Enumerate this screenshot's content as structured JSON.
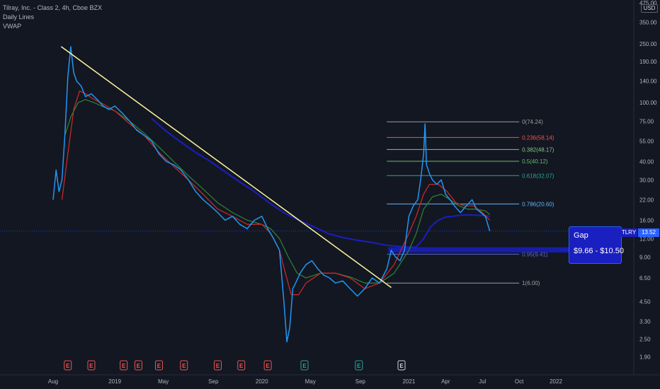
{
  "legend": {
    "title": "Tilray, Inc. - Class 2, 4h, Cboe BZX",
    "line1": "Daily Lines",
    "line2": "VWAP"
  },
  "currency": "USD",
  "colors": {
    "background": "#131722",
    "price": "#2196f3",
    "ma_red": "#c62828",
    "ma_green": "#2e7d32",
    "vwap": "#1a1fc0",
    "trendline": "#fff59d",
    "axis_text": "#b2b5be"
  },
  "gap": {
    "title": "Gap",
    "range": "$9.66 - $10.50"
  },
  "symbol_tag": "TLRY",
  "last_price": "13.52",
  "chart_data": {
    "type": "line",
    "title": "Tilray, Inc. - Class 2, 4h, Cboe BZX",
    "y_scale": "log",
    "ylim": [
      1.6,
      475
    ],
    "xlim": [
      2018.58,
      2022.42
    ],
    "y_ticks": [
      1.9,
      2.5,
      3.3,
      4.5,
      6.5,
      9.0,
      12.0,
      16.0,
      22.0,
      30.0,
      40.0,
      55.0,
      75.0,
      100.0,
      140.0,
      190.0,
      250.0,
      350.0,
      475.0
    ],
    "y_tick_labels": [
      "1.90",
      "2.50",
      "3.30",
      "4.50",
      "6.50",
      "9.00",
      "12.00",
      "16.00",
      "22.00",
      "30.00",
      "40.00",
      "55.00",
      "75.00",
      "100.00",
      "140.00",
      "190.00",
      "250.00",
      "350.00",
      "475.00"
    ],
    "x_ticks": [
      {
        "t": 2018.58,
        "label": "Aug"
      },
      {
        "t": 2019.0,
        "label": "2019"
      },
      {
        "t": 2019.33,
        "label": "May"
      },
      {
        "t": 2019.67,
        "label": "Sep"
      },
      {
        "t": 2020.0,
        "label": "2020"
      },
      {
        "t": 2020.33,
        "label": "May"
      },
      {
        "t": 2020.67,
        "label": "Sep"
      },
      {
        "t": 2021.0,
        "label": "2021"
      },
      {
        "t": 2021.25,
        "label": "Apr"
      },
      {
        "t": 2021.5,
        "label": "Jul"
      },
      {
        "t": 2021.75,
        "label": "Oct"
      },
      {
        "t": 2022.0,
        "label": "2022"
      }
    ],
    "series": [
      {
        "name": "TLRY",
        "x": [
          2018.58,
          2018.6,
          2018.62,
          2018.64,
          2018.66,
          2018.68,
          2018.7,
          2018.72,
          2018.74,
          2018.77,
          2018.8,
          2018.84,
          2018.88,
          2018.92,
          2018.96,
          2019.0,
          2019.05,
          2019.1,
          2019.15,
          2019.2,
          2019.25,
          2019.3,
          2019.35,
          2019.4,
          2019.45,
          2019.5,
          2019.55,
          2019.6,
          2019.65,
          2019.7,
          2019.75,
          2019.8,
          2019.85,
          2019.9,
          2019.95,
          2020.0,
          2020.04,
          2020.08,
          2020.12,
          2020.15,
          2020.17,
          2020.19,
          2020.21,
          2020.23,
          2020.26,
          2020.3,
          2020.34,
          2020.38,
          2020.42,
          2020.46,
          2020.5,
          2020.55,
          2020.6,
          2020.65,
          2020.7,
          2020.75,
          2020.8,
          2020.85,
          2020.88,
          2020.91,
          2020.94,
          2020.97,
          2021.0,
          2021.03,
          2021.06,
          2021.08,
          2021.1,
          2021.11,
          2021.12,
          2021.14,
          2021.16,
          2021.19,
          2021.22,
          2021.25,
          2021.28,
          2021.31,
          2021.35,
          2021.39,
          2021.43,
          2021.46,
          2021.49,
          2021.52,
          2021.55
        ],
        "y": [
          22,
          35,
          25,
          30,
          60,
          150,
          240,
          160,
          140,
          130,
          110,
          115,
          105,
          95,
          90,
          95,
          85,
          75,
          65,
          60,
          55,
          45,
          40,
          38,
          35,
          30,
          25,
          22,
          20,
          18,
          16,
          17,
          15,
          14,
          16,
          17,
          14,
          12,
          10,
          4.5,
          2.4,
          3.0,
          5.5,
          6.0,
          7.0,
          8.0,
          8.5,
          7.5,
          6.8,
          6.5,
          6.0,
          6.2,
          5.5,
          4.9,
          5.5,
          6.5,
          6.0,
          7.5,
          10,
          9,
          8.5,
          10,
          17,
          20,
          22,
          30,
          45,
          72,
          38,
          33,
          30,
          28,
          30,
          24,
          22,
          20,
          18,
          20,
          22,
          19,
          18,
          17,
          13.52
        ]
      },
      {
        "name": "MA red",
        "x": [
          2018.64,
          2018.68,
          2018.72,
          2018.76,
          2018.8,
          2018.86,
          2018.92,
          2019.0,
          2019.1,
          2019.2,
          2019.3,
          2019.4,
          2019.5,
          2019.6,
          2019.7,
          2019.8,
          2019.9,
          2020.0,
          2020.06,
          2020.12,
          2020.16,
          2020.2,
          2020.25,
          2020.3,
          2020.4,
          2020.5,
          2020.6,
          2020.7,
          2020.8,
          2020.9,
          2021.0,
          2021.05,
          2021.1,
          2021.14,
          2021.2,
          2021.26,
          2021.32,
          2021.38,
          2021.44,
          2021.5,
          2021.55
        ],
        "y": [
          22,
          45,
          90,
          120,
          115,
          105,
          98,
          88,
          72,
          60,
          46,
          37,
          30,
          24,
          19,
          17,
          15,
          15,
          13,
          10,
          7,
          5,
          5,
          6,
          7,
          7,
          6.5,
          5.5,
          6,
          8,
          13,
          17,
          24,
          28,
          28,
          25,
          21,
          20,
          20,
          18,
          16
        ]
      },
      {
        "name": "MA green",
        "x": [
          2018.66,
          2018.7,
          2018.75,
          2018.8,
          2018.86,
          2018.92,
          2019.0,
          2019.1,
          2019.2,
          2019.3,
          2019.4,
          2019.5,
          2019.6,
          2019.7,
          2019.8,
          2019.9,
          2020.0,
          2020.06,
          2020.12,
          2020.18,
          2020.24,
          2020.3,
          2020.4,
          2020.5,
          2020.6,
          2020.7,
          2020.8,
          2020.9,
          2021.0,
          2021.05,
          2021.1,
          2021.16,
          2021.22,
          2021.28,
          2021.34,
          2021.4,
          2021.46,
          2021.52,
          2021.55
        ],
        "y": [
          60,
          80,
          100,
          105,
          100,
          94,
          88,
          75,
          62,
          50,
          40,
          32,
          26,
          21,
          18,
          16,
          15,
          14,
          12,
          9,
          7,
          6.5,
          7,
          7,
          6.6,
          6,
          6,
          7,
          10,
          13,
          19,
          23,
          24,
          22,
          20,
          19,
          19,
          18.5,
          17.5
        ]
      },
      {
        "name": "VWAP",
        "x": [
          2019.25,
          2019.35,
          2019.45,
          2019.55,
          2019.65,
          2019.75,
          2019.85,
          2019.95,
          2020.05,
          2020.15,
          2020.25,
          2020.35,
          2020.45,
          2020.55,
          2020.65,
          2020.75,
          2020.85,
          2020.95,
          2021.0,
          2021.05,
          2021.1,
          2021.15,
          2021.2,
          2021.25,
          2021.3,
          2021.35,
          2021.4,
          2021.45,
          2021.5,
          2021.55
        ],
        "y": [
          78,
          64,
          54,
          46,
          40,
          34,
          29,
          25,
          21,
          18,
          16,
          14.5,
          13,
          12.2,
          11.7,
          11.3,
          10.8,
          10.6,
          10.5,
          10.5,
          12,
          14.5,
          16,
          16.8,
          17,
          17.3,
          17.4,
          17.3,
          17.2,
          17
        ]
      }
    ],
    "trendline": {
      "from": {
        "t": 2018.635,
        "y": 240
      },
      "to": {
        "t": 2020.88,
        "y": 5.6
      }
    },
    "fib_levels": [
      {
        "label": "0(74.24)",
        "value": 74.24,
        "color": "#9e9e9e"
      },
      {
        "label": "0.236(58.14)",
        "value": 58.14,
        "color": "#ef5350"
      },
      {
        "label": "0.382(48.17)",
        "value": 48.17,
        "color": "#81c784"
      },
      {
        "label": "0.5(40.12)",
        "value": 40.12,
        "color": "#66bb6a"
      },
      {
        "label": "0.618(32.07)",
        "value": 32.07,
        "color": "#26a69a"
      },
      {
        "label": "0.786(20.60)",
        "value": 20.6,
        "color": "#64b5f6"
      },
      {
        "label": "0.95(9.41)",
        "value": 9.41,
        "color": "#5c6bc0"
      },
      {
        "label": "1(6.00)",
        "value": 6.0,
        "color": "#9e9e9e"
      }
    ],
    "fib_range": {
      "t0": 2020.85,
      "t1": 2021.75
    },
    "gap_zone": {
      "low": 9.66,
      "high": 10.5,
      "t0": 2020.86
    },
    "current_price": 13.52,
    "earnings_markers": [
      {
        "t": 2018.68,
        "label": "E",
        "color": "#ef5350"
      },
      {
        "t": 2018.84,
        "label": "E",
        "color": "#ef5350"
      },
      {
        "t": 2019.06,
        "label": "E",
        "color": "#ef5350"
      },
      {
        "t": 2019.16,
        "label": "E",
        "color": "#ef5350"
      },
      {
        "t": 2019.3,
        "label": "E",
        "color": "#ef5350"
      },
      {
        "t": 2019.47,
        "label": "E",
        "color": "#ef5350"
      },
      {
        "t": 2019.7,
        "label": "E",
        "color": "#ef5350"
      },
      {
        "t": 2019.86,
        "label": "E",
        "color": "#ef5350"
      },
      {
        "t": 2020.04,
        "label": "E",
        "color": "#ef5350"
      },
      {
        "t": 2020.29,
        "label": "E",
        "color": "#26a69a"
      },
      {
        "t": 2020.66,
        "label": "E",
        "color": "#26a69a"
      },
      {
        "t": 2020.95,
        "label": "E",
        "color": "#d1d4dc"
      }
    ]
  }
}
